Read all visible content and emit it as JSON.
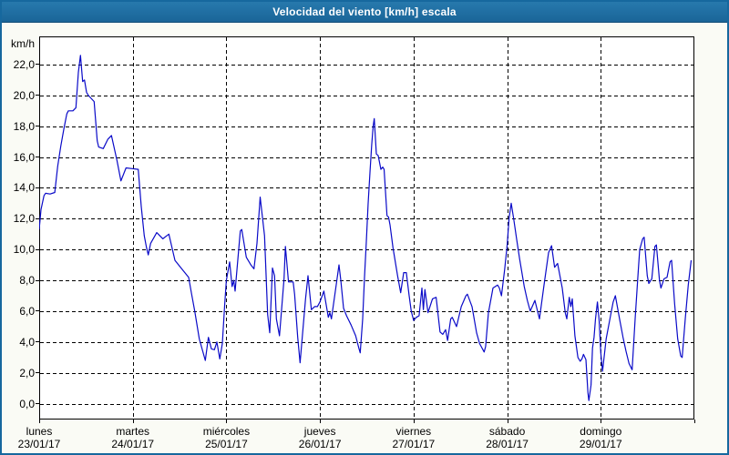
{
  "window": {
    "title": "Velocidad del viento [km/h] escala"
  },
  "colors": {
    "title_bar": "#1d6fa5",
    "window_border": "#16689e",
    "window_background": "#fafbf5",
    "plot_background": "#ffffff",
    "grid": "#000000",
    "line": "#0a0ac8",
    "title_text": "#ffffff",
    "axis_text": "#000000"
  },
  "chart_data": {
    "type": "line",
    "title": "Velocidad del viento [km/h] escala",
    "ylabel": "km/h",
    "xlabel": "",
    "grid": "dashed",
    "legend": "none",
    "y_ticks": [
      0,
      2,
      4,
      6,
      8,
      10,
      12,
      14,
      16,
      18,
      20,
      22
    ],
    "y_tick_labels": [
      "0,0",
      "2,0",
      "4,0",
      "6,0",
      "8,0",
      "10,0",
      "12,0",
      "14,0",
      "16,0",
      "18,0",
      "20,0",
      "22,0"
    ],
    "ylim": [
      -1.03,
      23.83
    ],
    "xlim": [
      0,
      7
    ],
    "x_days": [
      {
        "name": "lunes",
        "date": "23/01/17"
      },
      {
        "name": "martes",
        "date": "24/01/17"
      },
      {
        "name": "miércoles",
        "date": "25/01/17"
      },
      {
        "name": "jueves",
        "date": "26/01/17"
      },
      {
        "name": "viernes",
        "date": "27/01/17"
      },
      {
        "name": "sábado",
        "date": "28/01/17"
      },
      {
        "name": "domingo",
        "date": "29/01/17"
      }
    ],
    "series": [
      {
        "name": "Velocidad del viento [km/h]",
        "color": "#0a0ac8",
        "x_unit": "days_from_start",
        "points": [
          [
            0.0,
            11.3
          ],
          [
            0.019,
            12.6
          ],
          [
            0.052,
            13.5
          ],
          [
            0.068,
            13.65
          ],
          [
            0.117,
            13.6
          ],
          [
            0.166,
            13.7
          ],
          [
            0.198,
            15.4
          ],
          [
            0.231,
            16.7
          ],
          [
            0.263,
            17.8
          ],
          [
            0.295,
            18.8
          ],
          [
            0.312,
            19.0
          ],
          [
            0.36,
            19.0
          ],
          [
            0.392,
            19.2
          ],
          [
            0.419,
            21.5
          ],
          [
            0.441,
            22.6
          ],
          [
            0.464,
            20.9
          ],
          [
            0.484,
            21.0
          ],
          [
            0.506,
            20.2
          ],
          [
            0.526,
            20.0
          ],
          [
            0.587,
            19.6
          ],
          [
            0.62,
            17.05
          ],
          [
            0.636,
            16.65
          ],
          [
            0.684,
            16.55
          ],
          [
            0.733,
            17.15
          ],
          [
            0.772,
            17.4
          ],
          [
            0.83,
            15.8
          ],
          [
            0.873,
            14.45
          ],
          [
            0.928,
            15.3
          ],
          [
            0.993,
            15.25
          ],
          [
            1.058,
            15.2
          ],
          [
            1.09,
            12.8
          ],
          [
            1.123,
            10.9
          ],
          [
            1.146,
            10.15
          ],
          [
            1.165,
            9.65
          ],
          [
            1.191,
            10.4
          ],
          [
            1.256,
            11.1
          ],
          [
            1.321,
            10.7
          ],
          [
            1.385,
            11.0
          ],
          [
            1.451,
            9.3
          ],
          [
            1.516,
            8.8
          ],
          [
            1.597,
            8.2
          ],
          [
            1.629,
            7.1
          ],
          [
            1.662,
            6.0
          ],
          [
            1.711,
            4.2
          ],
          [
            1.775,
            2.8
          ],
          [
            1.808,
            4.3
          ],
          [
            1.84,
            3.55
          ],
          [
            1.872,
            3.5
          ],
          [
            1.898,
            4.0
          ],
          [
            1.93,
            2.9
          ],
          [
            1.957,
            3.9
          ],
          [
            1.981,
            6.35
          ],
          [
            2.0,
            8.0
          ],
          [
            2.035,
            9.2
          ],
          [
            2.061,
            7.6
          ],
          [
            2.079,
            8.0
          ],
          [
            2.093,
            7.3
          ],
          [
            2.149,
            11.2
          ],
          [
            2.164,
            11.3
          ],
          [
            2.213,
            9.5
          ],
          [
            2.262,
            9.0
          ],
          [
            2.295,
            8.75
          ],
          [
            2.327,
            10.4
          ],
          [
            2.361,
            13.4
          ],
          [
            2.408,
            10.9
          ],
          [
            2.441,
            5.8
          ],
          [
            2.463,
            4.6
          ],
          [
            2.492,
            8.8
          ],
          [
            2.515,
            8.3
          ],
          [
            2.534,
            5.5
          ],
          [
            2.567,
            4.4
          ],
          [
            2.616,
            8.1
          ],
          [
            2.631,
            10.2
          ],
          [
            2.664,
            7.9
          ],
          [
            2.713,
            7.9
          ],
          [
            2.729,
            7.1
          ],
          [
            2.762,
            4.3
          ],
          [
            2.787,
            2.65
          ],
          [
            2.846,
            6.8
          ],
          [
            2.872,
            8.3
          ],
          [
            2.908,
            6.1
          ],
          [
            2.943,
            6.3
          ],
          [
            2.972,
            6.3
          ],
          [
            3.0,
            6.6
          ],
          [
            3.041,
            7.3
          ],
          [
            3.089,
            5.6
          ],
          [
            3.106,
            5.9
          ],
          [
            3.122,
            5.5
          ],
          [
            3.171,
            7.6
          ],
          [
            3.203,
            9.0
          ],
          [
            3.223,
            8.0
          ],
          [
            3.252,
            6.2
          ],
          [
            3.284,
            5.7
          ],
          [
            3.333,
            5.1
          ],
          [
            3.381,
            4.4
          ],
          [
            3.415,
            3.6
          ],
          [
            3.43,
            3.3
          ],
          [
            3.456,
            5.5
          ],
          [
            3.476,
            8.2
          ],
          [
            3.495,
            10.5
          ],
          [
            3.515,
            13.0
          ],
          [
            3.534,
            15.0
          ],
          [
            3.553,
            16.8
          ],
          [
            3.568,
            18.0
          ],
          [
            3.58,
            18.5
          ],
          [
            3.602,
            16.2
          ],
          [
            3.622,
            16.1
          ],
          [
            3.651,
            15.2
          ],
          [
            3.67,
            15.35
          ],
          [
            3.685,
            15.2
          ],
          [
            3.716,
            12.2
          ],
          [
            3.733,
            12.1
          ],
          [
            3.748,
            11.6
          ],
          [
            3.78,
            10.1
          ],
          [
            3.829,
            8.3
          ],
          [
            3.862,
            7.2
          ],
          [
            3.894,
            8.5
          ],
          [
            3.923,
            8.5
          ],
          [
            3.953,
            7.0
          ],
          [
            3.975,
            6.0
          ],
          [
            4.0,
            5.4
          ],
          [
            4.03,
            5.6
          ],
          [
            4.059,
            5.7
          ],
          [
            4.089,
            7.5
          ],
          [
            4.105,
            6.1
          ],
          [
            4.121,
            7.4
          ],
          [
            4.154,
            5.9
          ],
          [
            4.202,
            6.8
          ],
          [
            4.241,
            6.9
          ],
          [
            4.283,
            4.65
          ],
          [
            4.312,
            4.5
          ],
          [
            4.342,
            4.8
          ],
          [
            4.364,
            4.1
          ],
          [
            4.397,
            5.5
          ],
          [
            4.413,
            5.6
          ],
          [
            4.459,
            5.0
          ],
          [
            4.51,
            6.3
          ],
          [
            4.559,
            7.0
          ],
          [
            4.575,
            7.1
          ],
          [
            4.624,
            6.3
          ],
          [
            4.673,
            4.6
          ],
          [
            4.705,
            3.9
          ],
          [
            4.754,
            3.35
          ],
          [
            4.77,
            3.7
          ],
          [
            4.8,
            5.9
          ],
          [
            4.848,
            7.5
          ],
          [
            4.897,
            7.7
          ],
          [
            4.917,
            7.5
          ],
          [
            4.939,
            7.0
          ],
          [
            4.972,
            8.65
          ],
          [
            5.0,
            10.3
          ],
          [
            5.02,
            12.0
          ],
          [
            5.043,
            13.0
          ],
          [
            5.069,
            12.0
          ],
          [
            5.101,
            10.7
          ],
          [
            5.133,
            9.4
          ],
          [
            5.182,
            7.6
          ],
          [
            5.215,
            6.7
          ],
          [
            5.247,
            6.0
          ],
          [
            5.296,
            6.7
          ],
          [
            5.328,
            5.9
          ],
          [
            5.345,
            5.5
          ],
          [
            5.393,
            7.65
          ],
          [
            5.442,
            9.8
          ],
          [
            5.474,
            10.25
          ],
          [
            5.507,
            8.85
          ],
          [
            5.539,
            9.1
          ],
          [
            5.588,
            7.5
          ],
          [
            5.62,
            5.9
          ],
          [
            5.637,
            5.5
          ],
          [
            5.663,
            6.9
          ],
          [
            5.68,
            6.3
          ],
          [
            5.695,
            6.8
          ],
          [
            5.724,
            4.4
          ],
          [
            5.756,
            3.0
          ],
          [
            5.78,
            2.75
          ],
          [
            5.799,
            2.9
          ],
          [
            5.815,
            3.2
          ],
          [
            5.841,
            2.85
          ],
          [
            5.863,
            0.7
          ],
          [
            5.873,
            0.2
          ],
          [
            5.896,
            1.2
          ],
          [
            5.912,
            3.6
          ],
          [
            5.928,
            4.3
          ],
          [
            5.944,
            5.5
          ],
          [
            5.964,
            6.6
          ],
          [
            5.983,
            5.4
          ],
          [
            6.0,
            3.3
          ],
          [
            6.019,
            2.1
          ],
          [
            6.058,
            4.2
          ],
          [
            6.107,
            5.8
          ],
          [
            6.133,
            6.6
          ],
          [
            6.156,
            7.0
          ],
          [
            6.204,
            5.4
          ],
          [
            6.238,
            4.3
          ],
          [
            6.27,
            3.4
          ],
          [
            6.302,
            2.6
          ],
          [
            6.335,
            2.2
          ],
          [
            6.367,
            5.5
          ],
          [
            6.399,
            8.5
          ],
          [
            6.416,
            10.0
          ],
          [
            6.448,
            10.7
          ],
          [
            6.464,
            10.8
          ],
          [
            6.497,
            8.3
          ],
          [
            6.513,
            7.8
          ],
          [
            6.545,
            8.1
          ],
          [
            6.578,
            10.2
          ],
          [
            6.594,
            10.3
          ],
          [
            6.627,
            8.0
          ],
          [
            6.643,
            7.5
          ],
          [
            6.676,
            8.1
          ],
          [
            6.708,
            8.2
          ],
          [
            6.74,
            9.2
          ],
          [
            6.757,
            9.3
          ],
          [
            6.789,
            6.5
          ],
          [
            6.822,
            4.2
          ],
          [
            6.854,
            3.1
          ],
          [
            6.87,
            3.0
          ],
          [
            6.903,
            5.5
          ],
          [
            6.935,
            7.7
          ],
          [
            6.966,
            9.3
          ]
        ]
      }
    ]
  }
}
